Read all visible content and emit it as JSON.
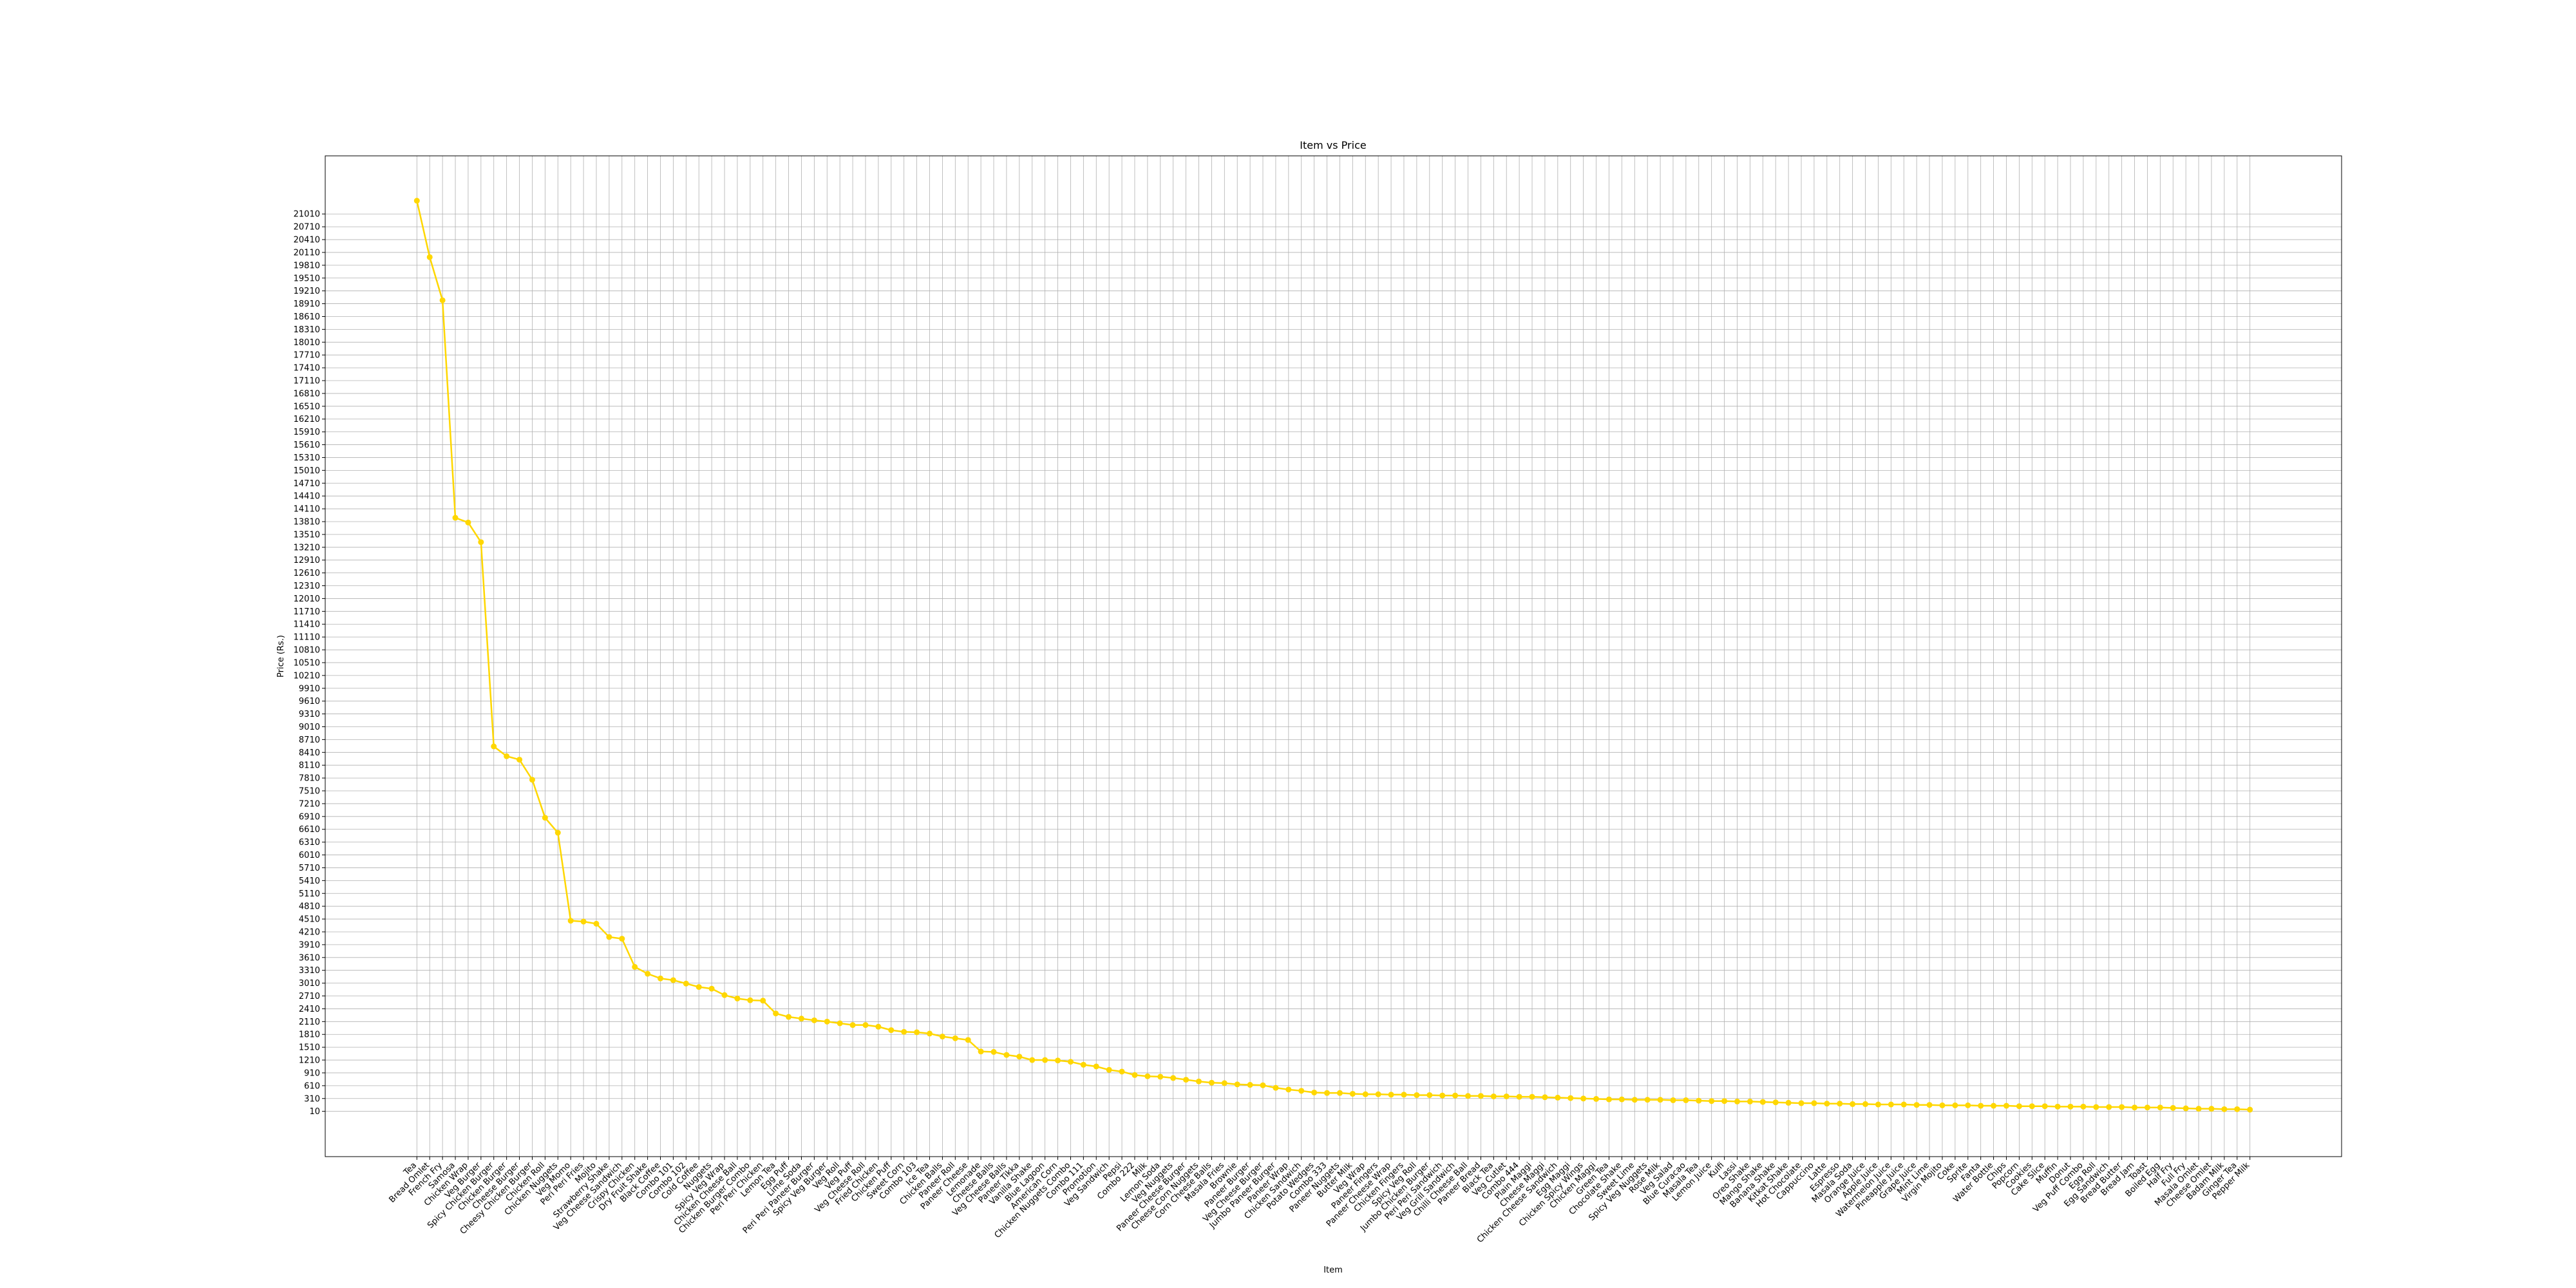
{
  "chart_data": {
    "type": "line",
    "title": "Item vs Price",
    "x_label": "Item",
    "y_label": "Price (Rs.)",
    "categories": [
      "Tea",
      "Bread Omlet",
      "French Fry",
      "Samosa",
      "Chicken Wrap",
      "Veg Burger",
      "Spicy Chicken Burger",
      "Chicken Burger",
      "Cheese Burger",
      "Cheesy Chicken Burger",
      "Chicken Roll",
      "Chicken Nuggets",
      "Veg Momo",
      "Peri Peri Fries",
      "Mojito",
      "Strawberry Shake",
      "Veg Cheese Sandwich",
      "Crispy Chicken",
      "Dry Fruit Shake",
      "Black Coffee",
      "Combo 101",
      "Combo 102",
      "Cold Coffee",
      "Nuggets",
      "Spicy Veg Wrap",
      "Chicken Cheese Ball",
      "Chicken Burger Combo",
      "Peri Peri Chicken",
      "Lemon Tea",
      "Egg Puff",
      "Lime Soda",
      "Peri Peri Paneer Burger",
      "Spicy Veg Burger",
      "Veg Roll",
      "Veg Puff",
      "Veg Cheese Roll",
      "Fried Chicken",
      "Chicken Puff",
      "Sweet Corn",
      "Combo 103",
      "Ice Tea",
      "Chicken Balls",
      "Paneer Roll",
      "Paneer Cheese",
      "Lemonade",
      "Cheese Balls",
      "Veg Cheese Balls",
      "Paneer Tikka",
      "Vanilla Shake",
      "Blue Lagoon",
      "American Corn",
      "Chicken Nuggets Combo",
      "Combo 111",
      "Promotion",
      "Veg Sandwich",
      "Pepsi",
      "Combo 222",
      "Milk",
      "Lemon Soda",
      "Veg Nuggets",
      "Paneer Cheese Burger",
      "Cheese Corn Nuggets",
      "Corn Cheese Balls",
      "Masala Fries",
      "Brownie",
      "Paneer Burger",
      "Veg Cheese Burger",
      "Jumbo Paneer Burger",
      "Paneer Wrap",
      "Chicken Sandwich",
      "Potato Wedges",
      "Combo 333",
      "Paneer Nuggets",
      "Butter Milk",
      "Veg Wrap",
      "Paneer Fingers",
      "Paneer Cheese Wrap",
      "Chicken Fingers",
      "Spicy Veg Roll",
      "Jumbo Chicken Burger",
      "Peri Peri Sandwich",
      "Veg Grill Sandwich",
      "Chilli Cheese Ball",
      "Paneer Bread",
      "Black Tea",
      "Veg Cutlet",
      "Combo 444",
      "Plain Maggi",
      "Cheese Maggi",
      "Chicken Cheese Sandwich",
      "Egg Maggi",
      "Chicken Spicy Wings",
      "Chicken Maggi",
      "Green Tea",
      "Chocolate Shake",
      "Sweet Lime",
      "Spicy Veg Nuggets",
      "Rose Milk",
      "Veg Salad",
      "Blue Curacao",
      "Masala Tea",
      "Lemon Juice",
      "Kulfi",
      "Lassi",
      "Oreo Shake",
      "Mango Shake",
      "Banana Shake",
      "Kitkat Shake",
      "Hot Chocolate",
      "Cappuccino",
      "Latte",
      "Espresso",
      "Masala Soda",
      "Orange Juice",
      "Apple Juice",
      "Watermelon Juice",
      "Pineapple Juice",
      "Grape Juice",
      "Mint Lime",
      "Virgin Mojito",
      "Coke",
      "Sprite",
      "Fanta",
      "Water Bottle",
      "Chips",
      "Popcorn",
      "Cookies",
      "Cake Slice",
      "Muffin",
      "Donut",
      "Veg Puff Combo",
      "Egg Roll",
      "Egg Sandwich",
      "Bread Butter",
      "Bread Jam",
      "Toast",
      "Boiled Egg",
      "Half Fry",
      "Full Fry",
      "Masala Omlet",
      "Cheese Omlet",
      "Badam Milk",
      "Ginger Tea",
      "Pepper Milk"
    ],
    "series": [
      {
        "name": "Price",
        "color": "#FFD700",
        "values": [
          21320,
          20000,
          18990,
          13900,
          13790,
          13330,
          8550,
          8320,
          8240,
          7770,
          6880,
          6530,
          4470,
          4450,
          4400,
          4090,
          4050,
          3390,
          3230,
          3120,
          3080,
          3000,
          2920,
          2880,
          2730,
          2650,
          2610,
          2600,
          2300,
          2220,
          2180,
          2140,
          2110,
          2070,
          2030,
          2030,
          1990,
          1910,
          1870,
          1860,
          1830,
          1760,
          1720,
          1680,
          1410,
          1400,
          1330,
          1290,
          1210,
          1210,
          1200,
          1170,
          1100,
          1060,
          980,
          940,
          860,
          830,
          820,
          790,
          750,
          710,
          680,
          670,
          640,
          630,
          620,
          560,
          520,
          490,
          450,
          440,
          440,
          420,
          410,
          410,
          400,
          400,
          390,
          390,
          380,
          380,
          370,
          370,
          360,
          360,
          350,
          350,
          340,
          330,
          320,
          310,
          300,
          290,
          290,
          280,
          280,
          280,
          270,
          270,
          260,
          250,
          250,
          240,
          240,
          230,
          220,
          210,
          200,
          200,
          190,
          190,
          180,
          180,
          170,
          170,
          170,
          160,
          160,
          150,
          150,
          150,
          140,
          140,
          140,
          130,
          130,
          130,
          120,
          120,
          120,
          110,
          110,
          110,
          100,
          100,
          100,
          90,
          80,
          70,
          70,
          60,
          60,
          50
        ]
      }
    ],
    "ylim": [
      -1050,
      22370
    ],
    "yticks": [
      10,
      310,
      610,
      910,
      1210,
      1510,
      1810,
      2110,
      2410,
      2710,
      3010,
      3310,
      3610,
      3910,
      4210,
      4510,
      4810,
      5110,
      5410,
      5710,
      6010,
      6310,
      6610,
      6910,
      7210,
      7510,
      7810,
      8110,
      8410,
      8710,
      9010,
      9310,
      9610,
      9910,
      10210,
      10510,
      10810,
      11110,
      11410,
      11710,
      12010,
      12310,
      12610,
      12910,
      13210,
      13510,
      13810,
      14110,
      14410,
      14710,
      15010,
      15310,
      15610,
      15910,
      16210,
      16510,
      16810,
      17110,
      17410,
      17710,
      18010,
      18310,
      18610,
      18910,
      19210,
      19510,
      19810,
      20110,
      20410,
      20710,
      21010
    ],
    "grid": true,
    "marker": "o"
  }
}
